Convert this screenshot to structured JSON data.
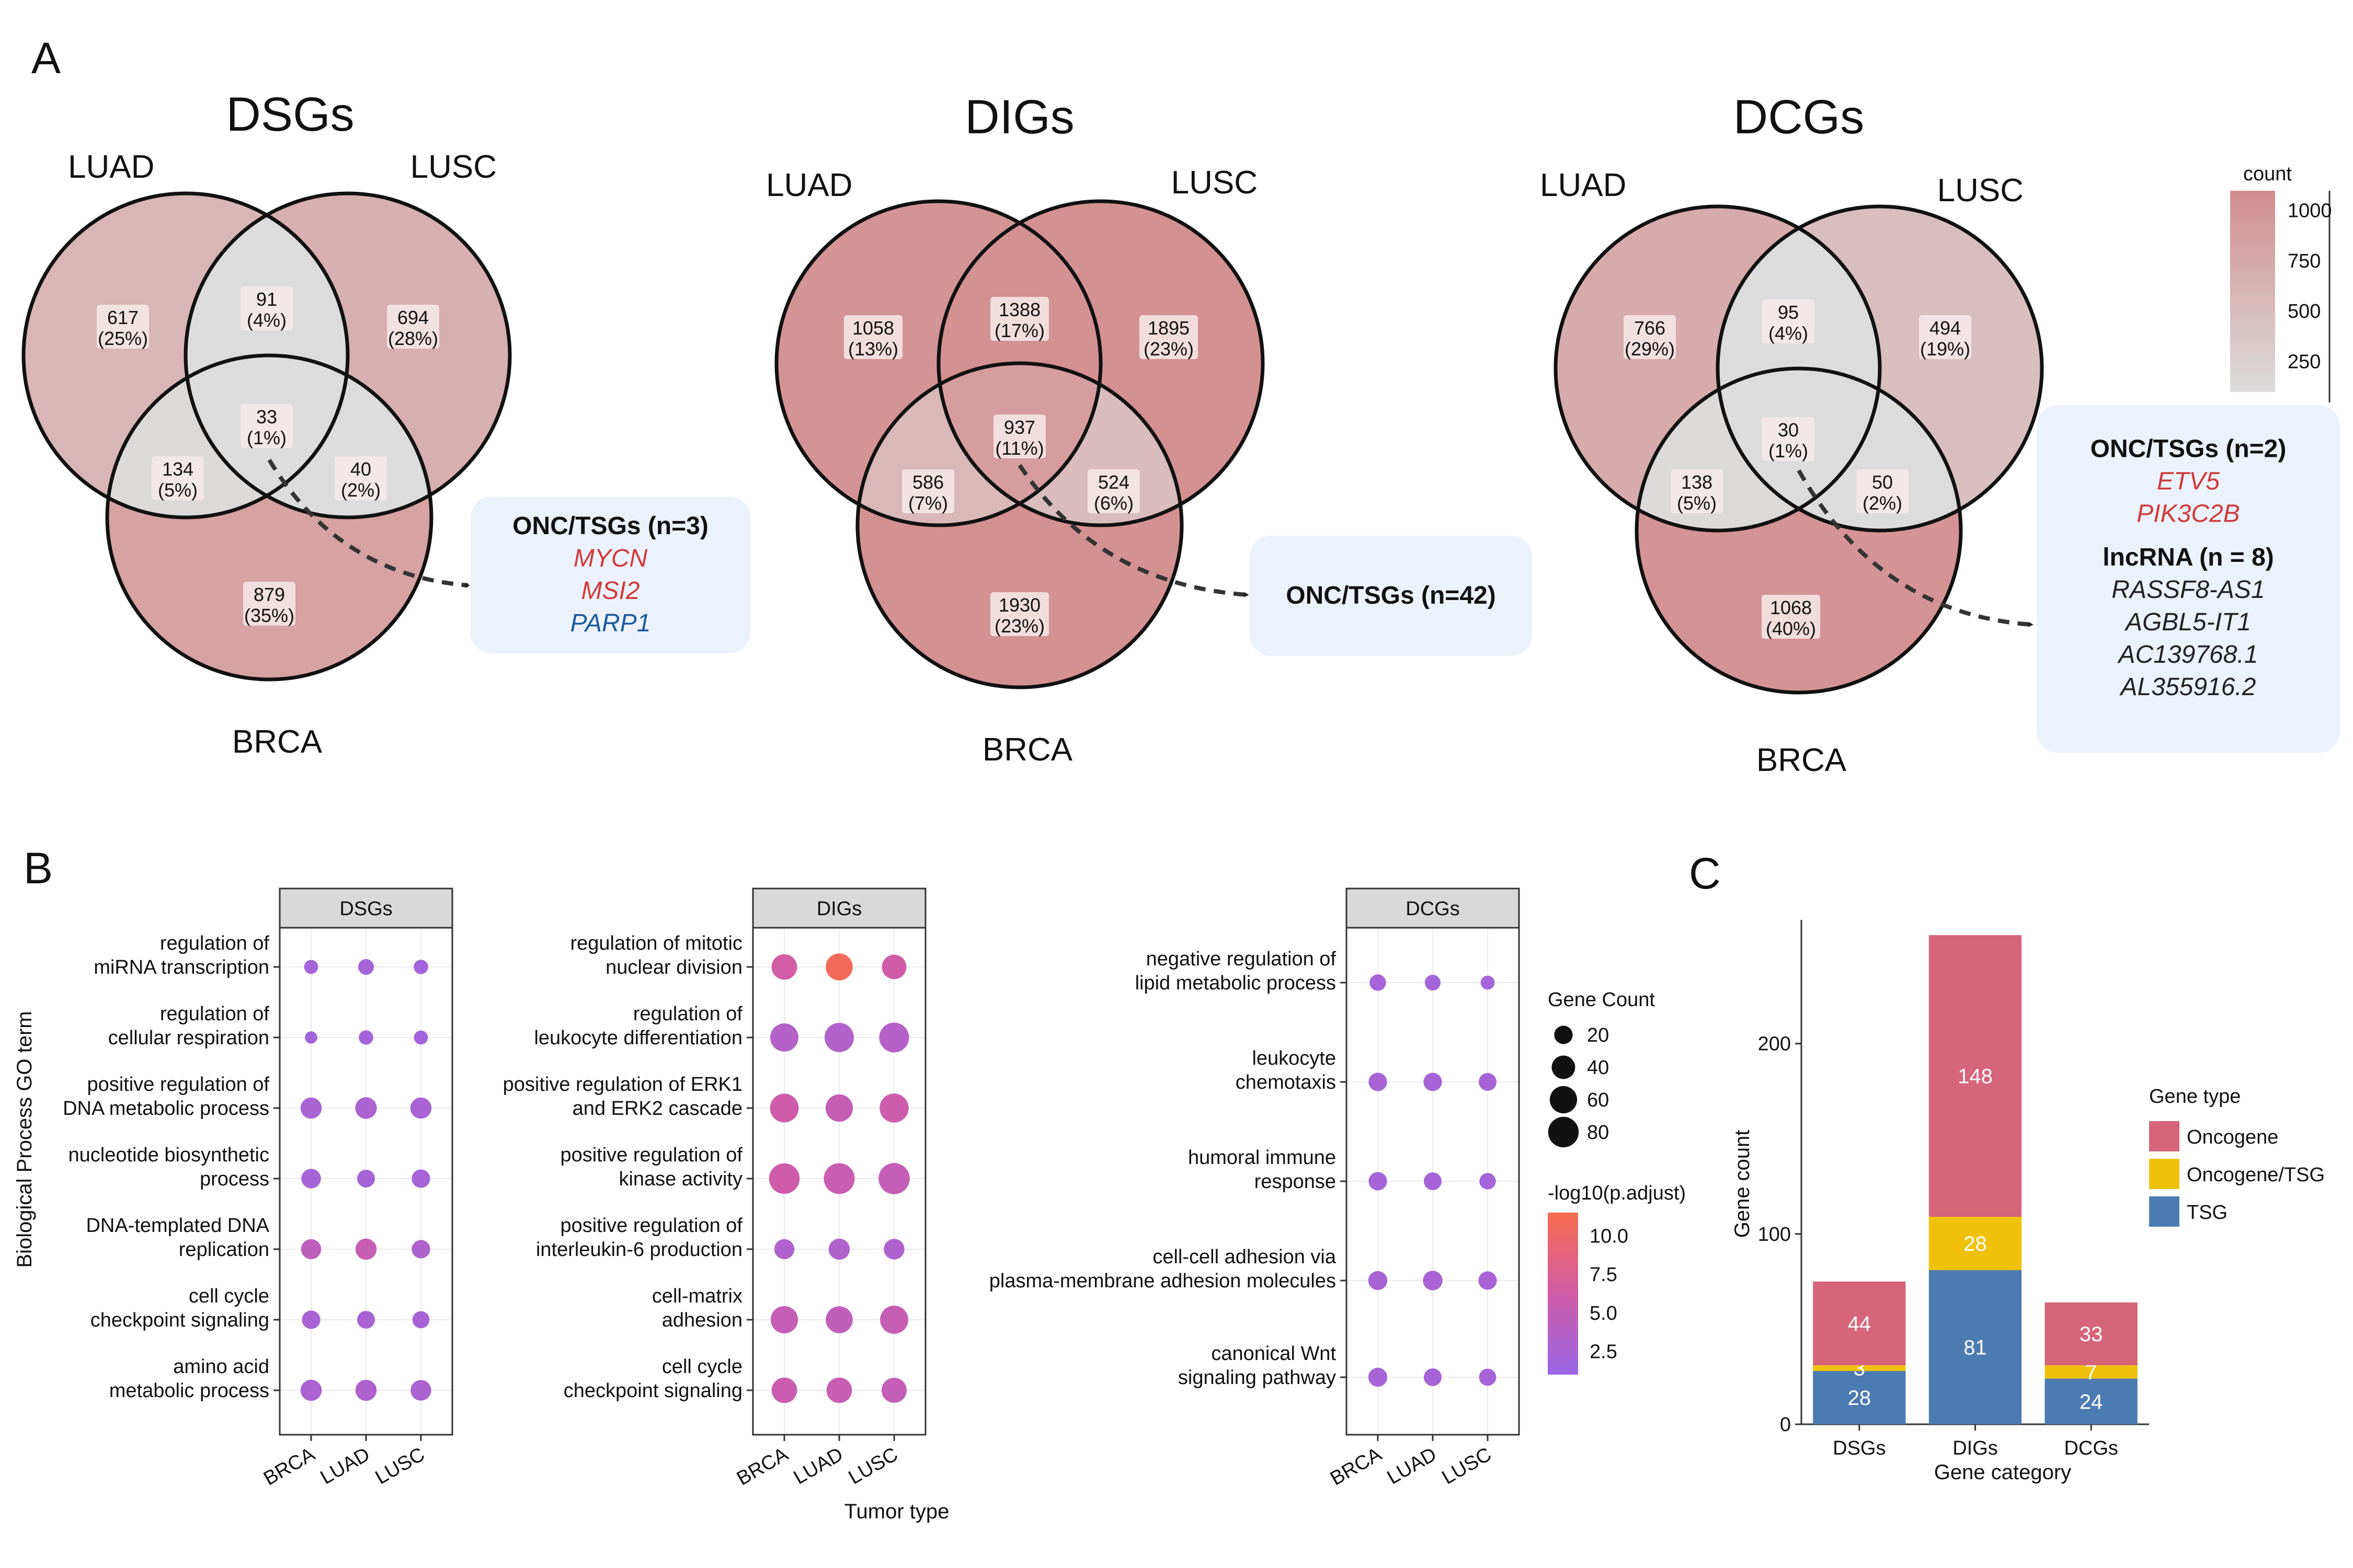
{
  "colors": {
    "venn_fill": "#d49192",
    "venn_mid": "#ddc2c2",
    "venn_center": "#dcdcdc",
    "oncogene": "#d6657a",
    "onc_tsg": "#efc10a",
    "tsg": "#4c7bb1",
    "red_gene": "#cf3b3b",
    "blue_gene": "#1f5a9e",
    "dot_low": "#9966e6",
    "dot_mid": "#d15ca8",
    "dot_high": "#f86c4f"
  },
  "panels": {
    "a": "A",
    "b": "B",
    "c": "C"
  },
  "venns": [
    {
      "title": "DSGs",
      "sets": [
        "LUAD",
        "LUSC",
        "BRCA"
      ],
      "regions": [
        {
          "key": "luad",
          "count": "617",
          "pct": "(25%)"
        },
        {
          "key": "luad_lusc",
          "count": "91",
          "pct": "(4%)"
        },
        {
          "key": "lusc",
          "count": "694",
          "pct": "(28%)"
        },
        {
          "key": "luad_brca",
          "count": "134",
          "pct": "(5%)"
        },
        {
          "key": "all",
          "count": "33",
          "pct": "(1%)"
        },
        {
          "key": "lusc_brca",
          "count": "40",
          "pct": "(2%)"
        },
        {
          "key": "brca",
          "count": "879",
          "pct": "(35%)"
        }
      ],
      "callout": {
        "sections": [
          {
            "head": "ONC/TSGs (n=3)",
            "items": [
              {
                "text": "MYCN",
                "color": "red"
              },
              {
                "text": "MSI2",
                "color": "red"
              },
              {
                "text": "PARP1",
                "color": "blue"
              }
            ]
          }
        ]
      }
    },
    {
      "title": "DIGs",
      "sets": [
        "LUAD",
        "LUSC",
        "BRCA"
      ],
      "regions": [
        {
          "key": "luad",
          "count": "1058",
          "pct": "(13%)"
        },
        {
          "key": "luad_lusc",
          "count": "1388",
          "pct": "(17%)"
        },
        {
          "key": "lusc",
          "count": "1895",
          "pct": "(23%)"
        },
        {
          "key": "luad_brca",
          "count": "586",
          "pct": "(7%)"
        },
        {
          "key": "all",
          "count": "937",
          "pct": "(11%)"
        },
        {
          "key": "lusc_brca",
          "count": "524",
          "pct": "(6%)"
        },
        {
          "key": "brca",
          "count": "1930",
          "pct": "(23%)"
        }
      ],
      "callout": {
        "sections": [
          {
            "head": "ONC/TSGs (n=42)",
            "items": []
          }
        ]
      }
    },
    {
      "title": "DCGs",
      "sets": [
        "LUAD",
        "LUSC",
        "BRCA"
      ],
      "regions": [
        {
          "key": "luad",
          "count": "766",
          "pct": "(29%)"
        },
        {
          "key": "luad_lusc",
          "count": "95",
          "pct": "(4%)"
        },
        {
          "key": "lusc",
          "count": "494",
          "pct": "(19%)"
        },
        {
          "key": "luad_brca",
          "count": "138",
          "pct": "(5%)"
        },
        {
          "key": "all",
          "count": "30",
          "pct": "(1%)"
        },
        {
          "key": "lusc_brca",
          "count": "50",
          "pct": "(2%)"
        },
        {
          "key": "brca",
          "count": "1068",
          "pct": "(40%)"
        }
      ],
      "callout": {
        "sections": [
          {
            "head": "ONC/TSGs (n=2)",
            "items": [
              {
                "text": "ETV5",
                "color": "red"
              },
              {
                "text": "PIK3C2B",
                "color": "red"
              }
            ]
          },
          {
            "head": "lncRNA (n = 8)",
            "items": [
              {
                "text": "RASSF8-AS1",
                "color": "dark"
              },
              {
                "text": "AGBL5-IT1",
                "color": "dark"
              },
              {
                "text": "AC139768.1",
                "color": "dark"
              },
              {
                "text": "AL355916.2",
                "color": "dark"
              }
            ]
          }
        ]
      }
    }
  ],
  "venn_count_legend": {
    "title": "count",
    "ticks": [
      1000,
      750,
      500,
      250
    ],
    "range": [
      100,
      1100
    ]
  },
  "chart_data": [
    {
      "type": "scatter",
      "panel": "B",
      "ylabel": "Biological Process GO term",
      "xlabel": "Tumor type",
      "x_categories": [
        "BRCA",
        "LUAD",
        "LUSC"
      ],
      "size_legend": {
        "title": "Gene Count",
        "values": [
          20,
          40,
          60,
          80
        ]
      },
      "color_legend": {
        "title": "-log10(p.adjust)",
        "ticks": [
          "10.0",
          "7.5",
          "5.0",
          "2.5"
        ],
        "range": [
          1,
          11.5
        ]
      },
      "facets": [
        {
          "title": "DSGs",
          "terms": [
            {
              "label": [
                "regulation of",
                "miRNA transcription"
              ],
              "points": [
                {
                  "count": 8,
                  "p": 2.0
                },
                {
                  "count": 12,
                  "p": 2.2
                },
                {
                  "count": 9,
                  "p": 2.0
                }
              ]
            },
            {
              "label": [
                "regulation of",
                "cellular respiration"
              ],
              "points": [
                {
                  "count": 5,
                  "p": 1.8
                },
                {
                  "count": 9,
                  "p": 2.0
                },
                {
                  "count": 8,
                  "p": 1.9
                }
              ]
            },
            {
              "label": [
                "positive regulation of",
                "DNA metabolic process"
              ],
              "points": [
                {
                  "count": 30,
                  "p": 2.6
                },
                {
                  "count": 32,
                  "p": 2.8
                },
                {
                  "count": 30,
                  "p": 2.5
                }
              ]
            },
            {
              "label": [
                "nucleotide biosynthetic",
                "process"
              ],
              "points": [
                {
                  "count": 24,
                  "p": 2.3
                },
                {
                  "count": 18,
                  "p": 2.3
                },
                {
                  "count": 20,
                  "p": 2.2
                }
              ]
            },
            {
              "label": [
                "DNA-templated DNA",
                "replication"
              ],
              "points": [
                {
                  "count": 26,
                  "p": 4.5
                },
                {
                  "count": 30,
                  "p": 5.2
                },
                {
                  "count": 20,
                  "p": 3.0
                }
              ]
            },
            {
              "label": [
                "cell cycle",
                "checkpoint signaling"
              ],
              "points": [
                {
                  "count": 20,
                  "p": 2.4
                },
                {
                  "count": 18,
                  "p": 2.5
                },
                {
                  "count": 16,
                  "p": 2.3
                }
              ]
            },
            {
              "label": [
                "amino acid",
                "metabolic process"
              ],
              "points": [
                {
                  "count": 30,
                  "p": 2.8
                },
                {
                  "count": 30,
                  "p": 3.0
                },
                {
                  "count": 28,
                  "p": 2.7
                }
              ]
            }
          ]
        },
        {
          "title": "DIGs",
          "terms": [
            {
              "label": [
                "regulation of mitotic",
                "nuclear division"
              ],
              "points": [
                {
                  "count": 50,
                  "p": 6.5
                },
                {
                  "count": 58,
                  "p": 10.8
                },
                {
                  "count": 45,
                  "p": 6.2
                }
              ]
            },
            {
              "label": [
                "regulation of",
                "leukocyte differentiation"
              ],
              "points": [
                {
                  "count": 65,
                  "p": 3.5
                },
                {
                  "count": 72,
                  "p": 3.3
                },
                {
                  "count": 75,
                  "p": 3.6
                }
              ]
            },
            {
              "label": [
                "positive regulation of ERK1",
                "and ERK2 cascade"
              ],
              "points": [
                {
                  "count": 68,
                  "p": 6.0
                },
                {
                  "count": 60,
                  "p": 5.2
                },
                {
                  "count": 70,
                  "p": 5.8
                }
              ]
            },
            {
              "label": [
                "positive regulation of",
                "kinase activity"
              ],
              "points": [
                {
                  "count": 80,
                  "p": 6.0
                },
                {
                  "count": 82,
                  "p": 5.5
                },
                {
                  "count": 84,
                  "p": 5.0
                }
              ]
            },
            {
              "label": [
                "positive regulation of",
                "interleukin-6 production"
              ],
              "points": [
                {
                  "count": 26,
                  "p": 3.3
                },
                {
                  "count": 30,
                  "p": 3.2
                },
                {
                  "count": 28,
                  "p": 3.0
                }
              ]
            },
            {
              "label": [
                "cell-matrix",
                "adhesion"
              ],
              "points": [
                {
                  "count": 60,
                  "p": 5.0
                },
                {
                  "count": 58,
                  "p": 4.6
                },
                {
                  "count": 65,
                  "p": 5.2
                }
              ]
            },
            {
              "label": [
                "cell cycle",
                "checkpoint signaling"
              ],
              "points": [
                {
                  "count": 50,
                  "p": 5.6
                },
                {
                  "count": 50,
                  "p": 5.3
                },
                {
                  "count": 48,
                  "p": 5.0
                }
              ]
            }
          ]
        },
        {
          "title": "DCGs",
          "terms": [
            {
              "label": [
                "negative regulation of",
                "lipid metabolic process"
              ],
              "points": [
                {
                  "count": 14,
                  "p": 2.2
                },
                {
                  "count": 12,
                  "p": 2.0
                },
                {
                  "count": 8,
                  "p": 2.0
                }
              ]
            },
            {
              "label": [
                "leukocyte",
                "chemotaxis"
              ],
              "points": [
                {
                  "count": 20,
                  "p": 2.4
                },
                {
                  "count": 20,
                  "p": 2.3
                },
                {
                  "count": 18,
                  "p": 2.3
                }
              ]
            },
            {
              "label": [
                "humoral immune",
                "response"
              ],
              "points": [
                {
                  "count": 20,
                  "p": 2.2
                },
                {
                  "count": 18,
                  "p": 2.2
                },
                {
                  "count": 14,
                  "p": 2.1
                }
              ]
            },
            {
              "label": [
                "cell-cell adhesion via",
                "plasma-membrane adhesion molecules"
              ],
              "points": [
                {
                  "count": 22,
                  "p": 2.4
                },
                {
                  "count": 24,
                  "p": 2.5
                },
                {
                  "count": 20,
                  "p": 2.4
                }
              ]
            },
            {
              "label": [
                "canonical Wnt",
                "signaling pathway"
              ],
              "points": [
                {
                  "count": 22,
                  "p": 2.3
                },
                {
                  "count": 18,
                  "p": 2.2
                },
                {
                  "count": 16,
                  "p": 2.2
                }
              ]
            }
          ]
        }
      ]
    },
    {
      "type": "bar",
      "panel": "C",
      "stacked": true,
      "xlabel": "Gene category",
      "ylabel": "Gene count",
      "categories": [
        "DSGs",
        "DIGs",
        "DCGs"
      ],
      "series": [
        {
          "name": "TSG",
          "values": [
            28,
            81,
            24
          ],
          "color_key": "tsg"
        },
        {
          "name": "Oncogene/TSG",
          "values": [
            3,
            28,
            7
          ],
          "color_key": "onc_tsg"
        },
        {
          "name": "Oncogene",
          "values": [
            44,
            148,
            33
          ],
          "color_key": "oncogene"
        }
      ],
      "yticks": [
        0,
        100,
        200
      ],
      "ylim": [
        0,
        265
      ],
      "legend_title": "Gene type",
      "legend_order": [
        "Oncogene",
        "Oncogene/TSG",
        "TSG"
      ],
      "legend_position": "right"
    }
  ]
}
